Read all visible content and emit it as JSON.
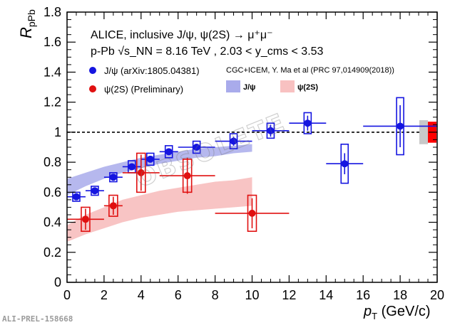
{
  "chart_data": {
    "type": "scatter",
    "xlabel": "p_T (GeV/c)",
    "ylabel": "R_pPb",
    "xlim": [
      0,
      20
    ],
    "ylim": [
      0,
      1.8
    ],
    "xticks": [
      0,
      2,
      4,
      6,
      8,
      10,
      12,
      14,
      16,
      18,
      20
    ],
    "yticks": [
      0,
      0.2,
      0.4,
      0.6,
      0.8,
      1.0,
      1.2,
      1.4,
      1.6,
      1.8
    ],
    "ytick_labels": [
      "0",
      "0.2",
      "0.4",
      "0.6",
      "0.8",
      "1",
      "1.2",
      "1.4",
      "1.6",
      "1.8"
    ],
    "title_line1": "ALICE, inclusive J/ψ, ψ(2S) → μ⁺μ⁻",
    "title_line2": "p-Pb √s_NN = 8.16 TeV , 2.03 < y_cms < 3.53",
    "reference_line": 1.0,
    "series": [
      {
        "name": "J/ψ (arXiv:1805.04381)",
        "color": "#1515e0",
        "points": [
          {
            "x": 0.5,
            "y": 0.57,
            "xerr": 0.5,
            "stat": 0.02,
            "sys": 0.03
          },
          {
            "x": 1.5,
            "y": 0.61,
            "xerr": 0.5,
            "stat": 0.02,
            "sys": 0.03
          },
          {
            "x": 2.5,
            "y": 0.7,
            "xerr": 0.5,
            "stat": 0.02,
            "sys": 0.03
          },
          {
            "x": 3.5,
            "y": 0.77,
            "xerr": 0.5,
            "stat": 0.02,
            "sys": 0.04
          },
          {
            "x": 4.5,
            "y": 0.82,
            "xerr": 0.5,
            "stat": 0.02,
            "sys": 0.04
          },
          {
            "x": 5.5,
            "y": 0.87,
            "xerr": 0.5,
            "stat": 0.02,
            "sys": 0.04
          },
          {
            "x": 7.0,
            "y": 0.9,
            "xerr": 1.0,
            "stat": 0.02,
            "sys": 0.04
          },
          {
            "x": 9.0,
            "y": 0.94,
            "xerr": 1.0,
            "stat": 0.03,
            "sys": 0.05
          },
          {
            "x": 11.0,
            "y": 1.01,
            "xerr": 1.0,
            "stat": 0.04,
            "sys": 0.05
          },
          {
            "x": 13.0,
            "y": 1.06,
            "xerr": 1.0,
            "stat": 0.05,
            "sys": 0.07
          },
          {
            "x": 15.0,
            "y": 0.79,
            "xerr": 1.0,
            "stat": 0.07,
            "sys": 0.13
          },
          {
            "x": 18.0,
            "y": 1.04,
            "xerr": 2.0,
            "stat": 0.14,
            "sys": 0.19
          }
        ]
      },
      {
        "name": "ψ(2S) (Preliminary)",
        "color": "#e01010",
        "points": [
          {
            "x": 1.0,
            "y": 0.42,
            "xerr": 1.0,
            "stat": 0.07,
            "sys": 0.08
          },
          {
            "x": 2.5,
            "y": 0.51,
            "xerr": 0.5,
            "stat": 0.06,
            "sys": 0.07
          },
          {
            "x": 4.0,
            "y": 0.73,
            "xerr": 1.0,
            "stat": 0.12,
            "sys": 0.13
          },
          {
            "x": 6.5,
            "y": 0.71,
            "xerr": 1.5,
            "stat": 0.12,
            "sys": 0.11
          },
          {
            "x": 10.0,
            "y": 0.46,
            "xerr": 2.0,
            "stat": 0.1,
            "sys": 0.12
          }
        ]
      }
    ],
    "model_bands": [
      {
        "name": "J/ψ",
        "color": "#a9abeb",
        "x": [
          0,
          1,
          2,
          3,
          4,
          5,
          6,
          7,
          8,
          9,
          10
        ],
        "low": [
          0.58,
          0.64,
          0.69,
          0.73,
          0.76,
          0.79,
          0.81,
          0.83,
          0.84,
          0.86,
          0.87
        ],
        "high": [
          0.69,
          0.73,
          0.77,
          0.8,
          0.83,
          0.85,
          0.87,
          0.89,
          0.9,
          0.91,
          0.92
        ]
      },
      {
        "name": "ψ(2S)",
        "color": "#f8c1c1",
        "x": [
          0,
          1,
          2,
          3,
          4,
          5,
          6,
          7,
          8,
          9,
          10
        ],
        "low": [
          0.27,
          0.32,
          0.36,
          0.4,
          0.43,
          0.45,
          0.47,
          0.48,
          0.49,
          0.5,
          0.51
        ],
        "high": [
          0.38,
          0.45,
          0.5,
          0.55,
          0.58,
          0.61,
          0.63,
          0.65,
          0.67,
          0.68,
          0.7
        ]
      }
    ],
    "global_uncertainty": [
      {
        "name": "J/ψ global",
        "color": "#c8c8c8",
        "low": 0.92,
        "high": 1.08
      },
      {
        "name": "ψ(2S) global",
        "color": "#ff0000",
        "low": 0.93,
        "high": 1.07
      }
    ],
    "legend": {
      "jpsi_data": "J/ψ (arXiv:1805.04381)",
      "psi2s_data": "ψ(2S) (Preliminary)",
      "model_title": "CGC+ICEM, Y. Ma et al (PRC 97,014909(2018))",
      "model_jpsi": "J/ψ",
      "model_psi2s": "ψ(2S)"
    }
  },
  "labels": {
    "preliminary_id": "ALI-PREL-158668",
    "ylabel_main": "R",
    "ylabel_sub": "pPb",
    "xlabel_main": "p",
    "xlabel_sub": "T",
    "xlabel_units": " (GeV/c)"
  }
}
